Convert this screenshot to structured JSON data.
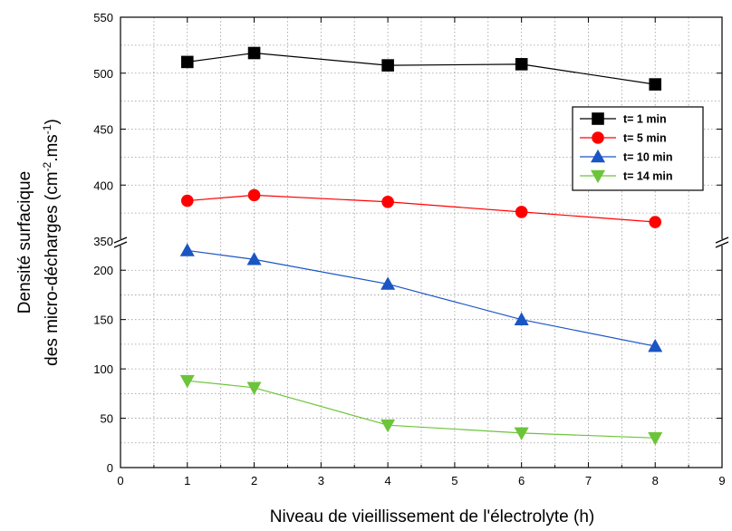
{
  "chart_data": {
    "type": "line",
    "xlabel": "Niveau de vieillissement de l'électrolyte (h)",
    "ylabel_line1": "Densité surfacique",
    "ylabel_line2_main": "des micro-décharges (cm",
    "ylabel_sup1": "-2",
    "ylabel_mid": ".ms",
    "ylabel_sup2": "-1",
    "ylabel_close": ")",
    "xlim": [
      0,
      9
    ],
    "x_ticks": [
      "0",
      "1",
      "2",
      "3",
      "4",
      "5",
      "6",
      "7",
      "8",
      "9"
    ],
    "y_broken": true,
    "y_break_between": [
      225,
      350
    ],
    "ylim_lower": [
      0,
      225
    ],
    "ylim_upper": [
      350,
      550
    ],
    "y_ticks_lower": [
      "0",
      "50",
      "100",
      "150",
      "200"
    ],
    "y_ticks_upper": [
      "350",
      "400",
      "450",
      "500",
      "550"
    ],
    "grid": true,
    "legend_position": "right",
    "series": [
      {
        "name": "t= 1 min",
        "color": "#000000",
        "marker": "square",
        "x": [
          1,
          2,
          4,
          6,
          8
        ],
        "y": [
          510,
          518,
          507,
          508,
          490
        ]
      },
      {
        "name": "t= 5 min",
        "color": "#ff0000",
        "marker": "circle",
        "x": [
          1,
          2,
          4,
          6,
          8
        ],
        "y": [
          386,
          391,
          385,
          376,
          367
        ]
      },
      {
        "name": "t= 10 min",
        "color": "#1a55c4",
        "marker": "triangle-up",
        "x": [
          1,
          2,
          4,
          6,
          8
        ],
        "y": [
          220,
          211,
          186,
          150,
          123
        ]
      },
      {
        "name": "t= 14 min",
        "color": "#6cc43a",
        "marker": "triangle-down",
        "x": [
          1,
          2,
          4,
          6,
          8
        ],
        "y": [
          88,
          81,
          43,
          35,
          30
        ]
      }
    ]
  }
}
